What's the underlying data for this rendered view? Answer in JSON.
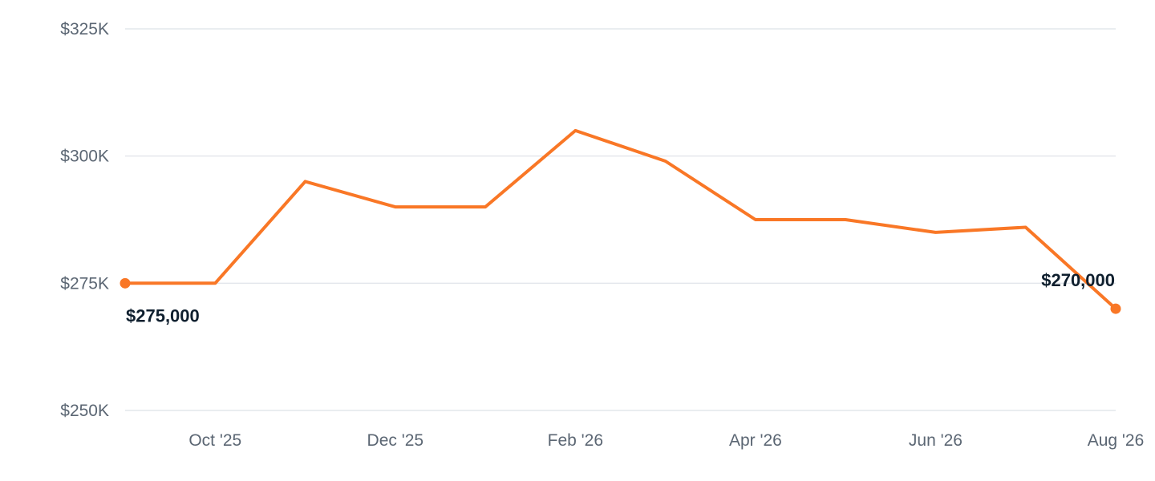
{
  "chart_data": {
    "type": "line",
    "title": "",
    "xlabel": "",
    "ylabel": "",
    "ylim": [
      250000,
      325000
    ],
    "y_ticks": [
      250000,
      275000,
      300000,
      325000
    ],
    "y_tick_labels": [
      "$250K",
      "$275K",
      "$300K",
      "$325K"
    ],
    "x_ticks": [
      "Oct '25",
      "Dec '25",
      "Feb '26",
      "Apr '26",
      "Jun '26",
      "Aug '26"
    ],
    "grid": true,
    "series": [
      {
        "color": "#f97726",
        "x": [
          "2025-09",
          "2025-10",
          "2025-11",
          "2025-12",
          "2026-01",
          "2026-02",
          "2026-03",
          "2026-04",
          "2026-05",
          "2026-06",
          "2026-07",
          "2026-08"
        ],
        "values": [
          275000,
          275000,
          295000,
          290000,
          290000,
          305000,
          299000,
          287500,
          287500,
          285000,
          286000,
          270000
        ]
      }
    ],
    "annotations": [
      {
        "point": "first",
        "text": "$275,000",
        "position": "below-right"
      },
      {
        "point": "last",
        "text": "$270,000",
        "position": "above-left"
      }
    ]
  }
}
